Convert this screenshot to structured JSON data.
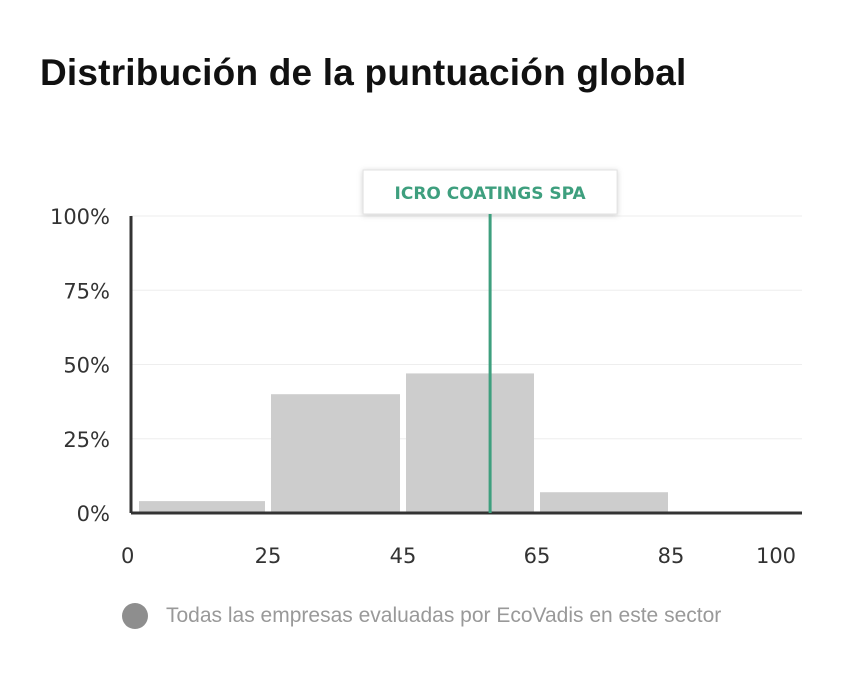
{
  "page": {
    "title": "Distribución de la puntuación global"
  },
  "chart_data": {
    "type": "bar",
    "title": "Distribución de la puntuación global",
    "x_ticks": [
      "0",
      "25",
      "45",
      "65",
      "85",
      "100"
    ],
    "x_tick_values": [
      0,
      25,
      45,
      65,
      85,
      100
    ],
    "y_ticks": [
      "0%",
      "25%",
      "50%",
      "75%",
      "100%"
    ],
    "y_tick_values": [
      0,
      25,
      50,
      75,
      100
    ],
    "ylim": [
      0,
      100
    ],
    "grid": true,
    "bins": [
      {
        "from": 0,
        "to": 25,
        "value": 4
      },
      {
        "from": 25,
        "to": 45,
        "value": 40
      },
      {
        "from": 45,
        "to": 65,
        "value": 47
      },
      {
        "from": 65,
        "to": 85,
        "value": 7
      },
      {
        "from": 85,
        "to": 100,
        "value": 0
      }
    ],
    "marker": {
      "label": "ICRO COATINGS SPA",
      "score": 58
    },
    "legend": {
      "label": "Todas las empresas evaluadas por EcoVadis en este sector",
      "placement": "bottom"
    },
    "colors": {
      "bar": "#cdcdcd",
      "marker": "#3e9f7e",
      "axis": "#333333",
      "grid": "#eeeeee",
      "legend_dot": "#8e8e8e"
    }
  }
}
